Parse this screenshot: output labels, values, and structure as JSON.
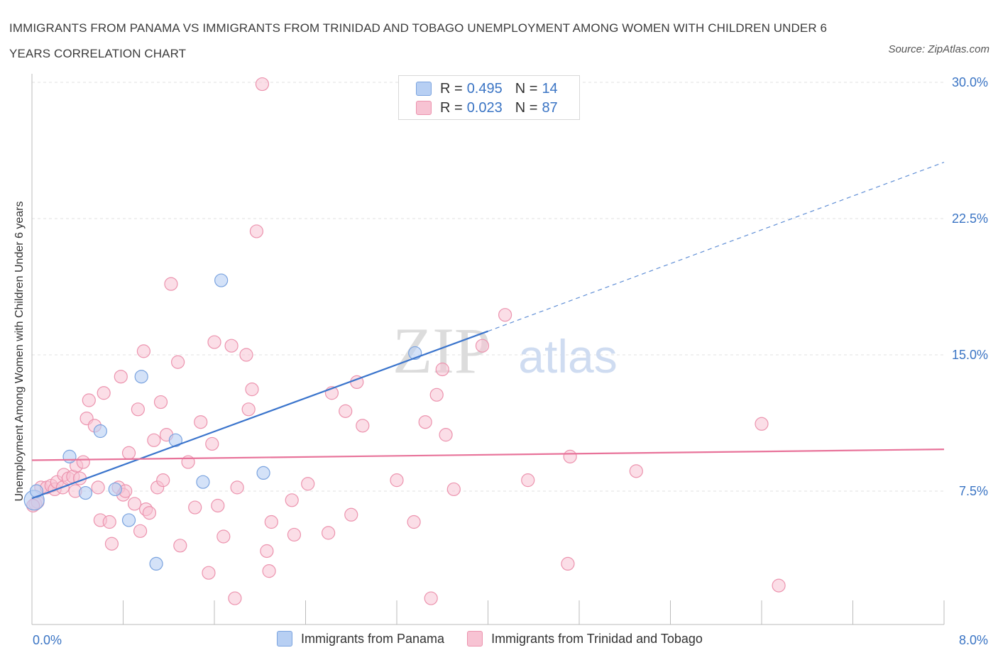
{
  "header": {
    "title": "IMMIGRANTS FROM PANAMA VS IMMIGRANTS FROM TRINIDAD AND TOBAGO UNEMPLOYMENT AMONG WOMEN WITH CHILDREN UNDER 6 YEARS CORRELATION CHART",
    "source": "Source: ZipAtlas.com"
  },
  "legend": {
    "panama": {
      "r_label": "R =",
      "r_value": "0.495",
      "n_label": "N =",
      "n_value": "14"
    },
    "trinidad": {
      "r_label": "R =",
      "r_value": "0.023",
      "n_label": "N =",
      "n_value": "87"
    }
  },
  "bottom_legend": {
    "panama": "Immigrants from Panama",
    "trinidad": "Immigrants from Trinidad and Tobago"
  },
  "watermark": {
    "zip": "ZIP",
    "atlas": "atlas"
  },
  "colors": {
    "panama_fill": "#b7cff3",
    "panama_stroke": "#7aa3df",
    "panama_line": "#3a74cc",
    "trinidad_fill": "#f7c3d3",
    "trinidad_stroke": "#ec93ae",
    "trinidad_line": "#e8739a",
    "axis_text": "#3a74c4",
    "grid": "#e2e2e2"
  },
  "chart_data": {
    "type": "scatter",
    "title": "IMMIGRANTS FROM PANAMA VS IMMIGRANTS FROM TRINIDAD AND TOBAGO UNEMPLOYMENT AMONG WOMEN WITH CHILDREN UNDER 6 YEARS CORRELATION CHART",
    "xlabel": "",
    "ylabel": "Unemployment Among Women with Children Under 6 years",
    "xlim": [
      0,
      8
    ],
    "ylim": [
      0,
      30.5
    ],
    "x_tick_labels": [
      "0.0%",
      "8.0%"
    ],
    "y_ticks": [
      7.5,
      15.0,
      22.5,
      30.0
    ],
    "y_tick_labels": [
      "7.5%",
      "15.0%",
      "22.5%",
      "30.0%"
    ],
    "grid": true,
    "legend_position": "top-center",
    "series": [
      {
        "name": "Immigrants from Panama",
        "points": [
          [
            0.02,
            7.0
          ],
          [
            0.04,
            7.5
          ],
          [
            0.33,
            9.4
          ],
          [
            0.47,
            7.4
          ],
          [
            0.6,
            10.8
          ],
          [
            0.73,
            7.6
          ],
          [
            0.85,
            5.9
          ],
          [
            0.96,
            13.8
          ],
          [
            1.09,
            3.5
          ],
          [
            1.26,
            10.3
          ],
          [
            1.5,
            8.0
          ],
          [
            1.66,
            19.1
          ],
          [
            2.03,
            8.5
          ],
          [
            3.36,
            15.1
          ]
        ],
        "trend": {
          "x0": 0.0,
          "y0": 7.1,
          "x1": 4.0,
          "y1": 16.3,
          "x_end": 8.0,
          "y_end": 25.6
        }
      },
      {
        "name": "Immigrants from Trinidad and Tobago",
        "points": [
          [
            0.03,
            6.8
          ],
          [
            0.05,
            6.9
          ],
          [
            0.08,
            7.7
          ],
          [
            0.13,
            7.7
          ],
          [
            0.17,
            7.8
          ],
          [
            0.2,
            7.6
          ],
          [
            0.22,
            8.0
          ],
          [
            0.27,
            7.7
          ],
          [
            0.28,
            8.4
          ],
          [
            0.32,
            8.2
          ],
          [
            0.36,
            8.3
          ],
          [
            0.38,
            7.5
          ],
          [
            0.39,
            8.9
          ],
          [
            0.42,
            8.2
          ],
          [
            0.45,
            9.1
          ],
          [
            0.48,
            11.5
          ],
          [
            0.5,
            12.5
          ],
          [
            0.55,
            11.1
          ],
          [
            0.58,
            7.7
          ],
          [
            0.6,
            5.9
          ],
          [
            0.63,
            12.9
          ],
          [
            0.68,
            5.8
          ],
          [
            0.7,
            4.6
          ],
          [
            0.76,
            7.7
          ],
          [
            0.78,
            13.8
          ],
          [
            0.8,
            7.3
          ],
          [
            0.82,
            7.5
          ],
          [
            0.85,
            9.6
          ],
          [
            0.9,
            6.8
          ],
          [
            0.93,
            12.0
          ],
          [
            0.95,
            5.3
          ],
          [
            0.98,
            15.2
          ],
          [
            1.0,
            6.5
          ],
          [
            1.03,
            6.3
          ],
          [
            1.07,
            10.3
          ],
          [
            1.1,
            7.7
          ],
          [
            1.13,
            12.4
          ],
          [
            1.15,
            8.1
          ],
          [
            1.18,
            10.6
          ],
          [
            1.22,
            18.9
          ],
          [
            1.28,
            14.6
          ],
          [
            1.3,
            4.5
          ],
          [
            1.37,
            9.1
          ],
          [
            1.43,
            6.6
          ],
          [
            1.48,
            11.3
          ],
          [
            1.55,
            3.0
          ],
          [
            1.58,
            10.1
          ],
          [
            1.6,
            15.7
          ],
          [
            1.63,
            6.7
          ],
          [
            1.68,
            5.0
          ],
          [
            1.75,
            15.5
          ],
          [
            1.78,
            1.6
          ],
          [
            1.8,
            7.7
          ],
          [
            1.88,
            15.0
          ],
          [
            1.9,
            12.0
          ],
          [
            1.93,
            13.1
          ],
          [
            1.97,
            21.8
          ],
          [
            2.02,
            29.9
          ],
          [
            2.06,
            4.2
          ],
          [
            2.08,
            3.1
          ],
          [
            2.1,
            5.8
          ],
          [
            2.28,
            7.0
          ],
          [
            2.3,
            5.1
          ],
          [
            2.42,
            7.9
          ],
          [
            2.6,
            5.2
          ],
          [
            2.63,
            12.9
          ],
          [
            2.75,
            11.9
          ],
          [
            2.8,
            6.2
          ],
          [
            2.85,
            13.5
          ],
          [
            2.9,
            11.1
          ],
          [
            3.2,
            8.1
          ],
          [
            3.35,
            5.8
          ],
          [
            3.45,
            11.3
          ],
          [
            3.5,
            1.6
          ],
          [
            3.55,
            12.8
          ],
          [
            3.6,
            14.2
          ],
          [
            3.63,
            10.6
          ],
          [
            3.7,
            7.6
          ],
          [
            3.95,
            15.5
          ],
          [
            4.15,
            17.2
          ],
          [
            4.35,
            8.1
          ],
          [
            4.7,
            3.5
          ],
          [
            4.72,
            9.4
          ],
          [
            5.3,
            8.6
          ],
          [
            6.4,
            11.2
          ],
          [
            6.55,
            2.3
          ],
          [
            0.01,
            6.7
          ]
        ],
        "trend": {
          "x0": 0.0,
          "y0": 9.2,
          "x1": 8.0,
          "y1": 9.8
        }
      }
    ]
  }
}
